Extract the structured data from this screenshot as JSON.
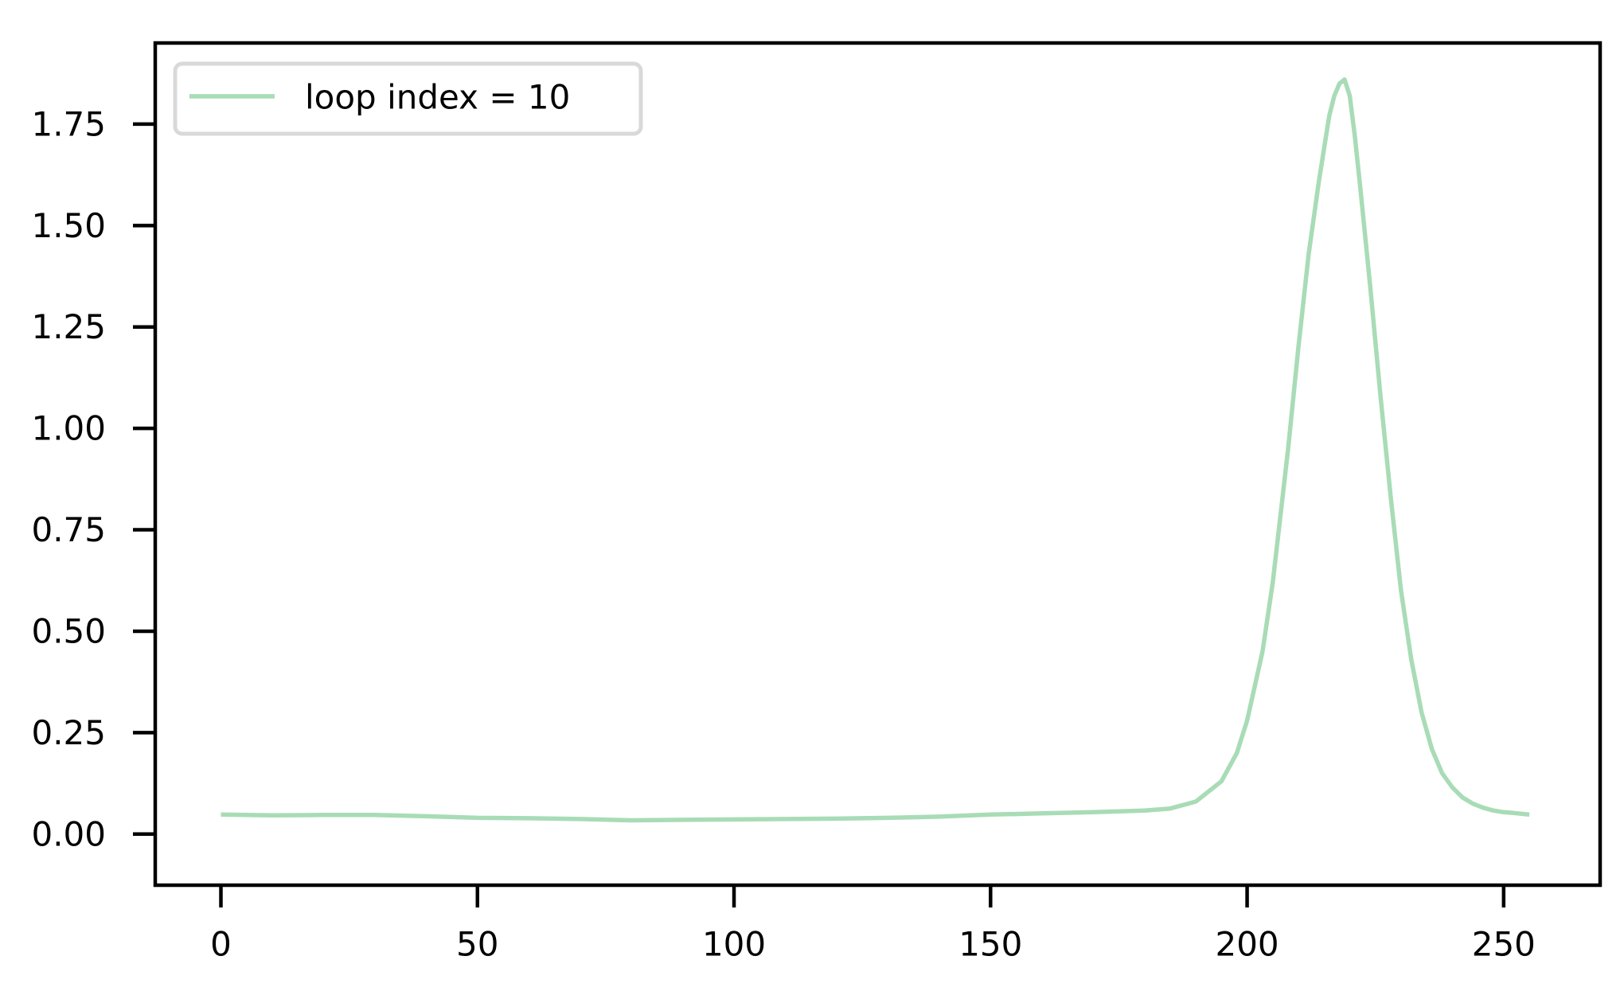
{
  "chart_data": {
    "type": "line",
    "title": "",
    "xlabel": "",
    "ylabel": "",
    "xlim": [
      -12.8,
      268.8
    ],
    "ylim": [
      -0.126,
      1.95
    ],
    "xticks": [
      0,
      50,
      100,
      150,
      200,
      250
    ],
    "yticks": [
      0.0,
      0.25,
      0.5,
      0.75,
      1.0,
      1.25,
      1.5,
      1.75
    ],
    "xtick_labels": [
      "0",
      "50",
      "100",
      "150",
      "200",
      "250"
    ],
    "ytick_labels": [
      "0.00",
      "0.25",
      "0.50",
      "0.75",
      "1.00",
      "1.25",
      "1.50",
      "1.75"
    ],
    "grid": false,
    "legend_position": "top-left",
    "series": [
      {
        "name": "loop index = 10",
        "color": "#a8dcb6",
        "x": [
          0,
          10,
          20,
          30,
          40,
          50,
          60,
          70,
          80,
          90,
          100,
          110,
          120,
          130,
          140,
          150,
          160,
          170,
          180,
          185,
          190,
          195,
          198,
          200,
          203,
          205,
          208,
          210,
          212,
          214,
          216,
          217,
          218,
          219,
          220,
          221,
          222,
          224,
          226,
          228,
          230,
          232,
          234,
          236,
          238,
          240,
          242,
          244,
          246,
          248,
          250,
          252,
          255
        ],
        "values": [
          0.048,
          0.046,
          0.047,
          0.047,
          0.044,
          0.04,
          0.039,
          0.037,
          0.034,
          0.035,
          0.036,
          0.037,
          0.038,
          0.04,
          0.043,
          0.048,
          0.051,
          0.054,
          0.058,
          0.063,
          0.08,
          0.13,
          0.2,
          0.28,
          0.45,
          0.62,
          0.95,
          1.2,
          1.43,
          1.61,
          1.77,
          1.82,
          1.85,
          1.86,
          1.82,
          1.72,
          1.6,
          1.35,
          1.08,
          0.83,
          0.6,
          0.43,
          0.3,
          0.21,
          0.15,
          0.115,
          0.09,
          0.075,
          0.065,
          0.058,
          0.054,
          0.052,
          0.048
        ]
      }
    ]
  }
}
